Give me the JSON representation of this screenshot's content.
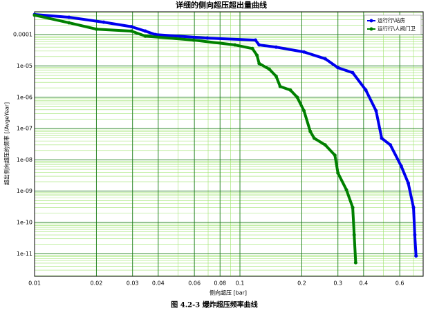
{
  "chart_data": {
    "type": "line",
    "title": "详细的侧向超压超出量曲线",
    "xlabel": "侧向超压 [bar]",
    "ylabel": "超出侧向超压的频率 [/AvgeYear]",
    "caption": "图 4.2-3 爆炸超压频率曲线",
    "xscale": "log",
    "yscale": "log",
    "grid": true,
    "legend": "upper right",
    "xlim": [
      0.01,
      0.78
    ],
    "ylim": [
      1.9e-12,
      0.00054
    ],
    "xticks": [
      0.01,
      0.02,
      0.03,
      0.04,
      0.06,
      0.08,
      0.1,
      0.2,
      0.3,
      0.4,
      0.6
    ],
    "yticks": [
      {
        "value": 1e-11,
        "label": "1e-11"
      },
      {
        "value": 1e-10,
        "label": "1e-10"
      },
      {
        "value": 1e-09,
        "label": "1e-09"
      },
      {
        "value": 1e-08,
        "label": "1e-08"
      },
      {
        "value": 1e-07,
        "label": "1e-07"
      },
      {
        "value": 1e-06,
        "label": "1e-06"
      },
      {
        "value": 1e-05,
        "label": "1e-05"
      },
      0.0001
    ],
    "series": [
      {
        "name": "运行行\\站房",
        "color": "#0000ee",
        "x": [
          0.01,
          0.0147,
          0.0217,
          0.0296,
          0.0346,
          0.0388,
          0.0694,
          0.119,
          0.124,
          0.15,
          0.205,
          0.26,
          0.3,
          0.354,
          0.41,
          0.46,
          0.49,
          0.54,
          0.61,
          0.66,
          0.7,
          0.71,
          0.72
        ],
        "values": [
          0.00044,
          0.00036,
          0.00025,
          0.00018,
          0.00013,
          0.0001,
          7.8e-05,
          6.7e-05,
          4.7e-05,
          4e-05,
          2.8e-05,
          1.7e-05,
          8.8e-06,
          6.1e-06,
          1.7e-06,
          3.7e-07,
          4.9e-08,
          3e-08,
          6.3e-09,
          1.8e-09,
          3e-10,
          4e-11,
          8.5e-12
        ]
      },
      {
        "name": "运行行\\人阀门卫",
        "color": "#008000",
        "x": [
          0.01,
          0.0147,
          0.02,
          0.0296,
          0.0346,
          0.0595,
          0.0945,
          0.115,
          0.121,
          0.124,
          0.139,
          0.15,
          0.157,
          0.176,
          0.19,
          0.205,
          0.22,
          0.23,
          0.26,
          0.29,
          0.3,
          0.33,
          0.354,
          0.36,
          0.366
        ],
        "values": [
          0.00042,
          0.00024,
          0.00015,
          0.00013,
          9e-05,
          6.7e-05,
          4.7e-05,
          3.6e-05,
          2.2e-05,
          1.2e-05,
          7.9e-06,
          4.7e-06,
          2.2e-06,
          1.7e-06,
          1e-06,
          3.7e-07,
          8.1e-08,
          4.9e-08,
          3e-08,
          1.4e-08,
          3.8e-09,
          1.1e-09,
          3e-10,
          4e-11,
          5.2e-12
        ]
      }
    ]
  }
}
